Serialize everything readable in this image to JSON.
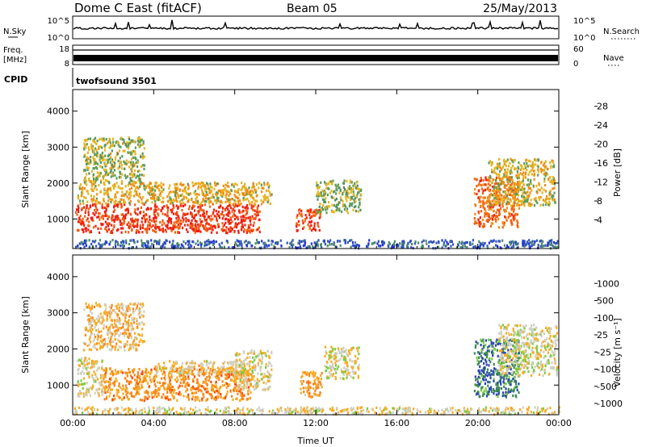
{
  "header": {
    "station": "Dome C East (fitACF)",
    "beam": "Beam 05",
    "date": "25/May/2013"
  },
  "ctrl": {
    "nsky_label": "N.Sky",
    "nsky_ticks": [
      "10^5",
      "10^0"
    ],
    "nsearch_label": "N.Search",
    "nsearch_ticks": [
      "10^5",
      "10^0"
    ],
    "freq_label": "Freq.",
    "freq_unit": "[MHz]",
    "freq_ticks": [
      "18",
      "8"
    ],
    "nave_label": "Nave",
    "nave_ticks": [
      "60",
      "0"
    ],
    "cpid_label": "CPID",
    "cpid_value": "twofsound 3501"
  },
  "colors": {
    "power": [
      "#2233dd",
      "#3355bb",
      "#4c8a6c",
      "#5a9b5a",
      "#e7b41f",
      "#f08c17",
      "#f36010",
      "#ee1e12"
    ],
    "velocity": [
      "#f21e10",
      "#f64a10",
      "#f7861a",
      "#f9ab21",
      "#cfcfc2",
      "#7ccc3d",
      "#3d8a53",
      "#2a44b4"
    ]
  },
  "chart_data": [
    {
      "type": "heatmap",
      "title": "",
      "xlabel": "",
      "ylabel": "Slant Range [km]",
      "xlim": [
        0,
        24
      ],
      "ylim": [
        180,
        4600
      ],
      "x_ticks": [
        "00:00",
        "04:00",
        "08:00",
        "12:00",
        "16:00",
        "20:00",
        "00:00"
      ],
      "y_ticks": [
        1000,
        2000,
        3000,
        4000
      ],
      "colorbar": {
        "label": "Power [dB]",
        "ticks": [
          "28",
          "24",
          "20",
          "16",
          "12",
          "8",
          "4"
        ],
        "range": [
          0,
          30
        ]
      },
      "regions": [
        {
          "t": [
            0.1,
            9.2
          ],
          "r": [
            650,
            1450
          ],
          "value": 27
        },
        {
          "t": [
            0.2,
            9.8
          ],
          "r": [
            1450,
            2050
          ],
          "value": 18
        },
        {
          "t": [
            0.5,
            3.5
          ],
          "r": [
            2050,
            3300
          ],
          "value": 15
        },
        {
          "t": [
            11.0,
            12.2
          ],
          "r": [
            700,
            1300
          ],
          "value": 26
        },
        {
          "t": [
            12.0,
            14.2
          ],
          "r": [
            1200,
            2100
          ],
          "value": 14
        },
        {
          "t": [
            0.0,
            24.0
          ],
          "r": [
            220,
            450
          ],
          "value": 6
        },
        {
          "t": [
            19.8,
            22.0
          ],
          "r": [
            800,
            2200
          ],
          "value": 24
        },
        {
          "t": [
            20.5,
            23.8
          ],
          "r": [
            1400,
            2700
          ],
          "value": 17
        }
      ]
    },
    {
      "type": "heatmap",
      "title": "",
      "xlabel": "Time UT",
      "ylabel": "Slant Range [km]",
      "xlim": [
        0,
        24
      ],
      "ylim": [
        180,
        4600
      ],
      "x_ticks": [
        "00:00",
        "04:00",
        "08:00",
        "12:00",
        "16:00",
        "20:00",
        "00:00"
      ],
      "y_ticks": [
        1000,
        2000,
        3000,
        4000
      ],
      "colorbar": {
        "label": "Velocity [m s⁻¹]",
        "ticks": [
          "1000",
          "500",
          "100",
          "25",
          "-25",
          "-100",
          "-500",
          "-1000"
        ],
        "range": [
          -1000,
          1000
        ]
      },
      "regions": [
        {
          "t": [
            0.2,
            1.5
          ],
          "r": [
            700,
            1800
          ],
          "value": 80
        },
        {
          "t": [
            1.5,
            8.8
          ],
          "r": [
            600,
            1500
          ],
          "value": -300
        },
        {
          "t": [
            4.0,
            8.5
          ],
          "r": [
            1350,
            1700
          ],
          "value": 0
        },
        {
          "t": [
            8.0,
            9.8
          ],
          "r": [
            900,
            2000
          ],
          "value": 70
        },
        {
          "t": [
            0.5,
            3.5
          ],
          "r": [
            2000,
            3300
          ],
          "value": -90
        },
        {
          "t": [
            11.2,
            12.3
          ],
          "r": [
            700,
            1400
          ],
          "value": -250
        },
        {
          "t": [
            12.4,
            14.1
          ],
          "r": [
            1200,
            2100
          ],
          "value": 60
        },
        {
          "t": [
            0.0,
            24.0
          ],
          "r": [
            220,
            420
          ],
          "value": 50
        },
        {
          "t": [
            19.8,
            22.0
          ],
          "r": [
            700,
            2300
          ],
          "value": 700
        },
        {
          "t": [
            21.0,
            23.9
          ],
          "r": [
            1300,
            2700
          ],
          "value": 90
        }
      ]
    }
  ]
}
